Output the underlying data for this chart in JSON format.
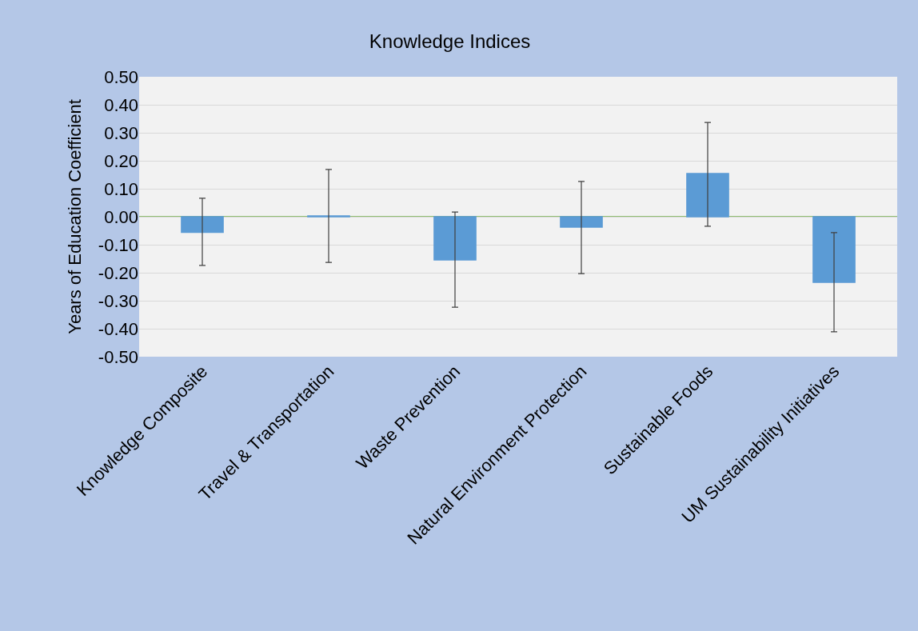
{
  "chart_data": {
    "type": "bar",
    "title": "Knowledge Indices",
    "ylabel": "Years of Education Coefficient",
    "categories": [
      "Knowledge Composite",
      "Travel & Transportation",
      "Waste Prevention",
      "Natural Environment Protection",
      "Sustainable Foods",
      "UM Sustainability Initiatives"
    ],
    "values": [
      -0.056,
      0.003,
      -0.154,
      -0.037,
      0.154,
      -0.234
    ],
    "colors": [
      "#5b9bd5",
      "#5b9bd5",
      "#5b9bd5",
      "#5b9bd5",
      "#5b9bd5",
      "#5b9bd5"
    ],
    "errors": [
      [
        -0.174,
        0.066
      ],
      [
        -0.163,
        0.169
      ],
      [
        -0.323,
        0.017
      ],
      [
        -0.203,
        0.126
      ],
      [
        -0.034,
        0.337
      ],
      [
        -0.411,
        -0.057
      ]
    ],
    "ylim": [
      -0.5,
      0.5
    ],
    "yticks": [
      {
        "value": -0.5,
        "label": "-0.50"
      },
      {
        "value": -0.4,
        "label": "-0.40"
      },
      {
        "value": -0.3,
        "label": "-0.30"
      },
      {
        "value": -0.2,
        "label": "-0.20"
      },
      {
        "value": -0.1,
        "label": "-0.10"
      },
      {
        "value": 0,
        "label": "0.00"
      },
      {
        "value": 0.1,
        "label": "0.10"
      },
      {
        "value": 0.2,
        "label": "0.20"
      },
      {
        "value": 0.3,
        "label": "0.30"
      },
      {
        "value": 0.4,
        "label": "0.40"
      },
      {
        "value": 0.5,
        "label": "0.50"
      }
    ],
    "grid": "y",
    "legend": false,
    "ref_lines": [
      {
        "axis": "y",
        "value": 0,
        "color": "#70ad47"
      }
    ]
  }
}
